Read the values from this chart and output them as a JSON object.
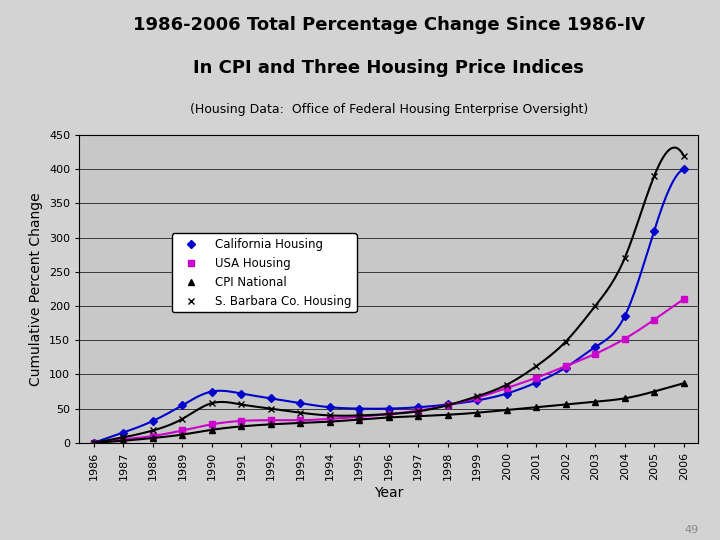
{
  "title_line1": "1986-2006 Total Percentage Change Since 1986-IV",
  "title_line2": "In CPI and Three Housing Price Indices",
  "subtitle": "(Housing Data:  Office of Federal Housing Enterprise Oversight)",
  "xlabel": "Year",
  "ylabel": "Cumulative Percent Change",
  "footnote": "49",
  "fig_facecolor": "#d3d3d3",
  "plot_bg_color": "#c8c8c8",
  "ylim": [
    0,
    450
  ],
  "yticks": [
    0,
    50,
    100,
    150,
    200,
    250,
    300,
    350,
    400,
    450
  ],
  "years": [
    1986,
    1987,
    1988,
    1989,
    1990,
    1991,
    1992,
    1993,
    1994,
    1995,
    1996,
    1997,
    1998,
    1999,
    2000,
    2001,
    2002,
    2003,
    2004,
    2005,
    2006
  ],
  "california_housing": [
    0,
    15,
    32,
    55,
    75,
    72,
    65,
    58,
    52,
    50,
    50,
    52,
    56,
    62,
    72,
    88,
    110,
    140,
    185,
    310,
    400
  ],
  "usa_housing": [
    0,
    5,
    10,
    18,
    27,
    32,
    33,
    33,
    35,
    38,
    42,
    47,
    55,
    66,
    80,
    95,
    112,
    130,
    152,
    180,
    210
  ],
  "cpi_national": [
    0,
    3,
    7,
    12,
    19,
    24,
    27,
    29,
    31,
    34,
    37,
    39,
    41,
    44,
    48,
    52,
    56,
    60,
    65,
    75,
    87
  ],
  "sb_housing": [
    0,
    8,
    18,
    35,
    58,
    56,
    50,
    44,
    40,
    40,
    42,
    46,
    55,
    68,
    85,
    112,
    148,
    200,
    270,
    390,
    420
  ],
  "california_color": "#0000cc",
  "usa_color": "#cc00cc",
  "cpi_color": "#000000",
  "sb_color": "#000000",
  "california_marker": "D",
  "usa_marker": "s",
  "cpi_marker": "^",
  "sb_marker": "x",
  "legend_labels": [
    "California Housing",
    "USA Housing",
    "CPI National",
    "S. Barbara Co. Housing"
  ],
  "title_fontsize": 13,
  "subtitle_fontsize": 9,
  "axis_label_fontsize": 10,
  "tick_fontsize": 8
}
